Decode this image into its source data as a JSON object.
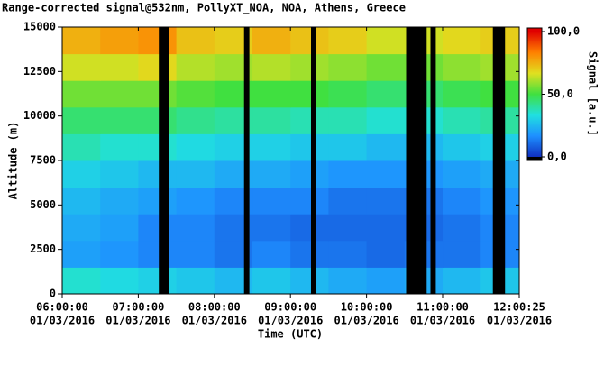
{
  "chart_data": {
    "type": "heatmap",
    "title": "Range-corrected signal@532nm, PollyXT_NOA, NOA, Athens, Greece",
    "x_label": "Time (UTC)",
    "y_label": "Altitude (m)",
    "colorbar_label": "Signal [a.u.]",
    "xlim": [
      6,
      12.00694
    ],
    "xticks": [
      {
        "value": 6,
        "label": "06:00:00"
      },
      {
        "value": 7,
        "label": "07:00:00"
      },
      {
        "value": 8,
        "label": "08:00:00"
      },
      {
        "value": 9,
        "label": "09:00:00"
      },
      {
        "value": 10,
        "label": "10:00:00"
      },
      {
        "value": 11,
        "label": "11:00:00"
      },
      {
        "value": 12.00694,
        "label": "12:00:25"
      }
    ],
    "xtick_dates": [
      "01/03/2016",
      "01/03/2016",
      "01/03/2016",
      "01/03/2016",
      "01/03/2016",
      "01/03/2016",
      "01/03/2016"
    ],
    "ylim": [
      0,
      15000
    ],
    "yticks": [
      0,
      2500,
      5000,
      7500,
      10000,
      12500,
      15000
    ],
    "clim": [
      0,
      100
    ],
    "cticks": [
      {
        "value": 0,
        "label": "0,0"
      },
      {
        "value": 50,
        "label": "50,0"
      },
      {
        "value": 100,
        "label": "100,0"
      }
    ],
    "colorscale": [
      "#1030c0",
      "#1e90ff",
      "#20e0e0",
      "#40e040",
      "#e0e020",
      "#ff8000",
      "#e00000"
    ],
    "xbins": [
      6,
      6.5,
      7,
      7.5,
      8,
      8.5,
      9,
      9.5,
      10,
      10.5,
      11,
      11.5,
      12.00694
    ],
    "ybins": [
      0,
      1500,
      3000,
      4500,
      6000,
      7500,
      9000,
      10500,
      12000,
      13500,
      15000
    ],
    "values": [
      [
        35,
        32,
        30,
        28,
        25,
        28,
        25,
        22,
        20,
        22,
        25,
        28
      ],
      [
        20,
        18,
        15,
        15,
        12,
        15,
        12,
        12,
        10,
        12,
        12,
        15
      ],
      [
        22,
        20,
        15,
        15,
        12,
        12,
        10,
        10,
        10,
        10,
        12,
        15
      ],
      [
        25,
        22,
        20,
        18,
        15,
        15,
        15,
        12,
        12,
        12,
        15,
        18
      ],
      [
        30,
        28,
        25,
        25,
        22,
        22,
        20,
        18,
        18,
        18,
        20,
        22
      ],
      [
        38,
        35,
        35,
        32,
        30,
        30,
        28,
        28,
        25,
        25,
        28,
        30
      ],
      [
        45,
        45,
        45,
        42,
        40,
        40,
        38,
        38,
        35,
        35,
        38,
        40
      ],
      [
        55,
        55,
        55,
        52,
        50,
        50,
        50,
        48,
        45,
        45,
        48,
        50
      ],
      [
        65,
        65,
        68,
        62,
        60,
        62,
        60,
        58,
        55,
        55,
        58,
        60
      ],
      [
        75,
        78,
        80,
        72,
        70,
        75,
        72,
        70,
        65,
        65,
        68,
        70
      ]
    ],
    "no_data_intervals": [
      [
        7.27,
        7.4
      ],
      [
        8.39,
        8.46
      ],
      [
        9.27,
        9.33
      ],
      [
        10.52,
        10.79
      ],
      [
        10.84,
        10.91
      ],
      [
        11.66,
        11.82
      ]
    ],
    "no_data_color": "#000000"
  }
}
